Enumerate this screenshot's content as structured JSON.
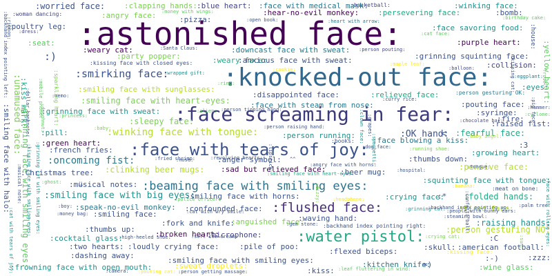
{
  "palette": {
    "background": "#ffffff",
    "dark_purple": "#440154",
    "indigo": "#3b528b",
    "teal": "#21918c",
    "green": "#5ec962",
    "yellow": "#fde725"
  },
  "words": [
    {
      "text": ":astonished face:",
      "color": "#440154",
      "weight": 1.0
    },
    {
      "text": ":knocked-out face:",
      "color": "#31688e",
      "weight": 0.72
    },
    {
      "text": ":face screaming in fear:",
      "color": "#3b3a7a",
      "weight": 0.62
    },
    {
      "text": ":face with tears of joy:",
      "color": "#3b528b",
      "weight": 0.55
    },
    {
      "text": ":water pistol:",
      "color": "#22a884",
      "weight": 0.5
    },
    {
      "text": ":beaming face with smiling eyes:",
      "color": "#2c728e",
      "weight": 0.42
    },
    {
      "text": ":flushed face:",
      "color": "#472d7b",
      "weight": 0.45
    },
    {
      "text": ":smirking face:",
      "color": "#3b528b",
      "weight": 0.3
    },
    {
      "text": ":worried face:",
      "color": "#3b528b",
      "weight": 0.2
    },
    {
      "text": ":clapping hands:",
      "color": "#7ad151",
      "weight": 0.18
    },
    {
      "text": ":blue heart:",
      "color": "#414487",
      "weight": 0.17
    },
    {
      "text": ":face with medical mask:",
      "color": "#2a788e",
      "weight": 0.17
    },
    {
      "text": ":basketball:",
      "color": "#414487",
      "weight": 0.1
    },
    {
      "text": ":winking face:",
      "color": "#21918c",
      "weight": 0.18
    },
    {
      "text": ":woman dancing:",
      "color": "#414487",
      "weight": 0.1
    },
    {
      "text": ":angry face:",
      "color": "#7ad151",
      "weight": 0.17
    },
    {
      "text": ":money with wings:",
      "color": "#5ec962",
      "weight": 0.09
    },
    {
      "text": ":hear-no-evil monkey:",
      "color": "#440154",
      "weight": 0.17
    },
    {
      "text": ":persevering face:",
      "color": "#22a884",
      "weight": 0.17
    },
    {
      "text": ":bomb:",
      "color": "#3b528b",
      "weight": 0.17
    },
    {
      "text": ":pizza:",
      "color": "#3b528b",
      "weight": 0.15
    },
    {
      "text": ":birthday cake:",
      "color": "#5ec962",
      "weight": 0.09
    },
    {
      "text": ":poultry leg:",
      "color": "#3b528b",
      "weight": 0.17
    },
    {
      "text": ":open book:",
      "color": "#3b528b",
      "weight": 0.09
    },
    {
      "text": ":heart with arrow:",
      "color": "#2a788e",
      "weight": 0.09
    },
    {
      "text": ":face savoring food:",
      "color": "#21918c",
      "weight": 0.17
    },
    {
      "text": ":dress:",
      "color": "#414487",
      "weight": 0.08
    },
    {
      "text": ":cat face:",
      "color": "#5ec962",
      "weight": 0.08
    },
    {
      "text": ":seat:",
      "color": "#5ec962",
      "weight": 0.17
    },
    {
      "text": ":purple heart:",
      "color": "#440154",
      "weight": 0.17
    },
    {
      "text": ":weary cat:",
      "color": "#440154",
      "weight": 0.15
    },
    {
      "text": ":Santa Claus:",
      "color": "#3b528b",
      "weight": 0.09
    },
    {
      "text": ":downcast face with sweat:",
      "color": "#2a788e",
      "weight": 0.15
    },
    {
      "text": ":person pouting:",
      "color": "#414487",
      "weight": 0.09
    },
    {
      "text": ":grinning squinting face:",
      "color": "#3b528b",
      "weight": 0.17
    },
    {
      "text": ":party popper:",
      "color": "#7ad151",
      "weight": 0.15
    },
    {
      "text": ":weary face:",
      "color": "#22a884",
      "weight": 0.15
    },
    {
      "text": ":anxious face with sweat:",
      "color": "#3b528b",
      "weight": 0.15
    },
    {
      "text": ":kissing face with closed eyes:",
      "color": "#3b528b",
      "weight": 0.1
    },
    {
      "text": ":collision:",
      "color": "#414487",
      "weight": 0.17
    },
    {
      "text": ":maple leaf:",
      "color": "#fde725",
      "weight": 0.09
    },
    {
      "text": ":balloon:",
      "color": "#414487",
      "weight": 0.1
    },
    {
      "text": ":cookie:",
      "color": "#fde725",
      "weight": 0.09
    },
    {
      "text": ":wrapped gift:",
      "color": "#21918c",
      "weight": 0.09
    },
    {
      "text": ":smiling face with sunglasses:",
      "color": "#b5de2b",
      "weight": 0.15
    },
    {
      "text": ":ring:",
      "color": "#5ec962",
      "weight": 0.08
    },
    {
      "text": ":disappointed face:",
      "color": "#3b528b",
      "weight": 0.15
    },
    {
      "text": ":relieved face:",
      "color": "#22a884",
      "weight": 0.15
    },
    {
      "text": ":person gesturing OK:",
      "color": "#2a788e",
      "weight": 0.15
    },
    {
      "text": ":eyes:",
      "color": "#21918c",
      "weight": 0.15
    },
    {
      "text": ":eggplant:",
      "color": "#2a788e",
      "weight": 0.09
    },
    {
      "text": ":memo:",
      "color": "#3b528b",
      "weight": 0.08
    },
    {
      "text": ":smiling face with heart-eyes:",
      "color": "#7ad151",
      "weight": 0.19
    },
    {
      "text": ":face with steam from nose:",
      "color": "#2a788e",
      "weight": 0.15
    },
    {
      "text": ":curry rice:",
      "color": "#3b528b",
      "weight": 0.08
    },
    {
      "text": ":pouting face:",
      "color": "#3b528b",
      "weight": 0.17
    },
    {
      "text": ":hammer:",
      "color": "#3b528b",
      "weight": 0.08
    },
    {
      "text": ":grinning face with sweat:",
      "color": "#21918c",
      "weight": 0.15
    },
    {
      "text": ":alien:",
      "color": "#5ec962",
      "weight": 0.08
    },
    {
      "text": ":person tipping hand:",
      "color": "#3b528b",
      "weight": 0.09
    },
    {
      "text": ":syringe:",
      "color": "#3b528b",
      "weight": 0.15
    },
    {
      "text": ":cyclone:",
      "color": "#5ec962",
      "weight": 0.08
    },
    {
      "text": ":princess:",
      "color": "#5ec962",
      "weight": 0.08
    },
    {
      "text": ":sleepy face:",
      "color": "#7ad151",
      "weight": 0.17
    },
    {
      "text": ":fire:",
      "color": "#3b528b",
      "weight": 0.17
    },
    {
      "text": ":chocolate bar:",
      "color": "#414487",
      "weight": 0.08
    },
    {
      "text": ":raised fist:",
      "color": "#3b528b",
      "weight": 0.15
    },
    {
      "text": ":pill:",
      "color": "#21918c",
      "weight": 0.17
    },
    {
      "text": ":baby:",
      "color": "#7ad151",
      "weight": 0.08
    },
    {
      "text": ":winking face with tongue:",
      "color": "#b5de2b",
      "weight": 0.23
    },
    {
      "text": ":person running:",
      "color": "#21918c",
      "weight": 0.17
    },
    {
      "text": ":person raising hand:",
      "color": "#3b528b",
      "weight": 0.08
    },
    {
      "text": ":OK hand:",
      "color": "#3b528b",
      "weight": 0.2
    },
    {
      "text": ":fearful face:",
      "color": "#22a884",
      "weight": 0.19
    },
    {
      "text": ":green heart:",
      "color": "#440154",
      "weight": 0.17
    },
    {
      "text": ":fried shrimp:",
      "color": "#3b528b",
      "weight": 0.08
    },
    {
      "text": ":revolving hearts:",
      "color": "#3b528b",
      "weight": 0.08
    },
    {
      "text": ":books:",
      "color": "#3b528b",
      "weight": 0.1
    },
    {
      "text": ":face blowing a kiss:",
      "color": "#2a788e",
      "weight": 0.17
    },
    {
      "text": ":baby angel:",
      "color": "#b5de2b",
      "weight": 0.08
    },
    {
      "text": ":french fries:",
      "color": "#3b528b",
      "weight": 0.17
    },
    {
      "text": ":dog face:",
      "color": "#3b528b",
      "weight": 0.09
    },
    {
      "text": ":running shoe:",
      "color": "#7ad151",
      "weight": 0.08
    },
    {
      "text": ":3",
      "color": "#3b528b",
      "weight": 0.15
    },
    {
      "text": ":growing heart:",
      "color": "#21918c",
      "weight": 0.17
    },
    {
      "text": ":oncoming fist:",
      "color": "#2a788e",
      "weight": 0.22
    },
    {
      "text": ":nose:",
      "color": "#3b528b",
      "weight": 0.08
    },
    {
      "text": ":anger symbol:",
      "color": "#3b528b",
      "weight": 0.15
    },
    {
      "text": "^^",
      "color": "#3b528b",
      "weight": 0.12
    },
    {
      "text": ":thumbs down:",
      "color": "#3b528b",
      "weight": 0.15
    },
    {
      "text": ":Christmas tree:",
      "color": "#3b528b",
      "weight": 0.17
    },
    {
      "text": ":clinking beer mugs:",
      "color": "#b5de2b",
      "weight": 0.19
    },
    {
      "text": ":angry face with horns:",
      "color": "#3b528b",
      "weight": 0.09
    },
    {
      "text": ":sad but relieved face:",
      "color": "#440154",
      "weight": 0.17
    },
    {
      "text": ":beer mug:",
      "color": "#3b528b",
      "weight": 0.15
    },
    {
      "text": ":pensive face:",
      "color": "#b5de2b",
      "weight": 0.17
    },
    {
      "text": ":tongue:",
      "color": "#3b528b",
      "weight": 0.1
    },
    {
      "text": ":ghost:",
      "color": "#5ec962",
      "weight": 0.08
    },
    {
      "text": ":smiling face with heart-eyes:",
      "color": "#22a884",
      "weight": 0.09
    },
    {
      "text": ":hospital:",
      "color": "#3b528b",
      "weight": 0.08
    },
    {
      "text": ":musical notes:",
      "color": "#3b528b",
      "weight": 0.15
    },
    {
      "text": ":squinting face with tongue:",
      "color": "#21918c",
      "weight": 0.17
    },
    {
      "text": ":meat on bone:",
      "color": "#3b528b",
      "weight": 0.1
    },
    {
      "text": ":smiling face with big eyes:",
      "color": "#21918c",
      "weight": 0.19
    },
    {
      "text": ":smiling face with horns:",
      "color": "#3b528b",
      "weight": 0.15
    },
    {
      "text": ":crying face:",
      "color": "#21918c",
      "weight": 0.15
    },
    {
      "text": ":*",
      "color": "#3b528b",
      "weight": 0.15
    },
    {
      "text": ":folded hands:",
      "color": "#22a884",
      "weight": 0.18
    },
    {
      "text": ":banana:",
      "color": "#fde725",
      "weight": 0.08
    },
    {
      "text": ":police officer:",
      "color": "#5ec962",
      "weight": 0.08
    },
    {
      "text": ":headphone:",
      "color": "#fde725",
      "weight": 0.08
    },
    {
      "text": ":boy:",
      "color": "#3b528b",
      "weight": 0.08
    },
    {
      "text": ":speak-no-evil monkey:",
      "color": "#2a788e",
      "weight": 0.17
    },
    {
      "text": ":confounded face:",
      "color": "#3b528b",
      "weight": 0.15
    },
    {
      "text": ":tired face:",
      "color": "#b5de2b",
      "weight": 0.15
    },
    {
      "text": ":palm tree:",
      "color": "#3b528b",
      "weight": 0.08
    },
    {
      "text": ":money bag:",
      "color": "#3b528b",
      "weight": 0.09
    },
    {
      "text": ":smiling face:",
      "color": "#3b528b",
      "weight": 0.17
    },
    {
      "text": ":cat with wry smile:",
      "color": "#3b528b",
      "weight": 0.08
    },
    {
      "text": ":grinning cat:",
      "color": "#21918c",
      "weight": 0.09
    },
    {
      "text": ":steaming bowl:",
      "color": "#3b528b",
      "weight": 0.08
    },
    {
      "text": ":people with bunny ears:",
      "color": "#3b528b",
      "weight": 0.08
    },
    {
      "text": ":fork and knife:",
      "color": "#3b528b",
      "weight": 0.17
    },
    {
      "text": ":anguished face:",
      "color": "#7ad151",
      "weight": 0.17
    },
    {
      "text": ":waving hand:",
      "color": "#3b528b",
      "weight": 0.15
    },
    {
      "text": ":raising hands:",
      "color": "#21918c",
      "weight": 0.17
    },
    {
      "text": ":backhand index pointing up:",
      "color": "#3b528b",
      "weight": 0.08
    },
    {
      "text": ":gem stone:",
      "color": "#3b528b",
      "weight": 0.08
    },
    {
      "text": ":backhand index pointing right:",
      "color": "#3b528b",
      "weight": 0.1
    },
    {
      "text": ":thumbs up:",
      "color": "#3b528b",
      "weight": 0.15
    },
    {
      "text": ":broken heart:",
      "color": "#440154",
      "weight": 0.17
    },
    {
      "text": ":microphone:",
      "color": "#414487",
      "weight": 0.15
    },
    {
      "text": ":person gesturing NO:",
      "color": "#b5de2b",
      "weight": 0.17
    },
    {
      "text": ":cocktail glass:",
      "color": "#21918c",
      "weight": 0.17
    },
    {
      "text": ":high-heeled shoe:",
      "color": "#3b528b",
      "weight": 0.08
    },
    {
      "text": ":soft ice cream:",
      "color": "#3b528b",
      "weight": 0.08
    },
    {
      "text": ":crying cat:",
      "color": "#7ad151",
      "weight": 0.09
    },
    {
      "text": ":C",
      "color": "#3b528b",
      "weight": 0.12
    },
    {
      "text": ":two hearts:",
      "color": "#3b528b",
      "weight": 0.1
    },
    {
      "text": ":loudly crying face:",
      "color": "#3b528b",
      "weight": 0.17
    },
    {
      "text": ":pile of poo:",
      "color": "#3b528b",
      "weight": 0.17
    },
    {
      "text": ":skull:",
      "color": "#3b528b",
      "weight": 0.15
    },
    {
      "text": ":american football:",
      "color": "#3b528b",
      "weight": 0.15
    },
    {
      "text": ":dashing away:",
      "color": "#3b528b",
      "weight": 0.17
    },
    {
      "text": ":smiling face with smiling eyes:",
      "color": "#3b528b",
      "weight": 0.15
    },
    {
      "text": ":flexed biceps:",
      "color": "#3b528b",
      "weight": 0.17
    },
    {
      "text": ":kissing face:",
      "color": "#fde725",
      "weight": 0.09
    },
    {
      "text": ":-)",
      "color": "#3b528b",
      "weight": 0.12
    },
    {
      "text": ":zzz:",
      "color": "#3b528b",
      "weight": 0.15
    },
    {
      "text": ":frowning face with open mouth:",
      "color": "#21918c",
      "weight": 0.17
    },
    {
      "text": ":sweat droplets:",
      "color": "#fde725",
      "weight": 0.17
    },
    {
      "text": ":kitchen knife:",
      "color": "#2a788e",
      "weight": 0.17
    },
    {
      "text": "=)",
      "color": "#3b528b",
      "weight": 0.12
    },
    {
      "text": ":wine glass:",
      "color": "#5ec962",
      "weight": 0.17
    },
    {
      "text": ":pouting cat:",
      "color": "#fde725",
      "weight": 0.08
    },
    {
      "text": ":camera:",
      "color": "#3b528b",
      "weight": 0.08
    },
    {
      "text": ":person getting massage:",
      "color": "#3b528b",
      "weight": 0.08
    },
    {
      "text": ":kiss:",
      "color": "#3b528b",
      "weight": 0.1
    },
    {
      "text": ":leaf fluttering in wind:",
      "color": "#5ec962",
      "weight": 0.08
    },
    {
      "text": ":house:",
      "color": "#3b528b",
      "weight": 0.08
    },
    {
      "text": ":yellow heart:",
      "color": "#5ec962",
      "weight": 0.17
    },
    {
      "text": ":backhand index pointing left:",
      "color": "#3b528b",
      "weight": 0.08
    },
    {
      "text": ":unamused face:",
      "color": "#7ad151",
      "weight": 0.2
    },
    {
      "text": ":kiss mark:",
      "color": "#22a884",
      "weight": 0.15
    },
    {
      "text": ":dollar banknote:",
      "color": "#3b528b",
      "weight": 0.08
    },
    {
      "text": ":mobile phone:",
      "color": "#5ec962",
      "weight": 0.08
    },
    {
      "text": ":sparkling heart:",
      "color": "#7ad151",
      "weight": 0.1
    },
    {
      "text": ":ribbon:",
      "color": "#3b528b",
      "weight": 0.08
    },
    {
      "text": ":doughnut:",
      "color": "#5ec962",
      "weight": 0.08
    },
    {
      "text": ":smiling face with halo:",
      "color": "#3b528b",
      "weight": 0.17
    },
    {
      "text": ":grinning face with smiling eyes:",
      "color": "#5ec962",
      "weight": 0.18
    },
    {
      "text": ":grinning cat with smiling eyes:",
      "color": "#21918c",
      "weight": 0.1
    },
    {
      "text": ":cat with tears of joy:",
      "color": "#21918c",
      "weight": 0.08
    },
    {
      "text": ":musical note:",
      "color": "#3b528b",
      "weight": 0.1
    },
    {
      "text": ":kissing face with smiling eyes:",
      "color": "#21918c",
      "weight": 0.08
    },
    {
      "text": ":confetti ball:",
      "color": "#3b528b",
      "weight": 0.08
    },
    {
      "text": ":dizzy:",
      "color": "#7ad151",
      "weight": 0.08
    },
    {
      "text": ":lipstick:",
      "color": "#3b528b",
      "weight": 0.08
    },
    {
      "text": ":grapes:",
      "color": "#3b528b",
      "weight": 0.08
    },
    {
      "text": ":spaghetti:",
      "color": "#21918c",
      "weight": 0.08
    },
    {
      "text": ":kissing cat:",
      "color": "#3b528b",
      "weight": 0.08
    },
    {
      "text": ":rose:",
      "color": "#5ec962",
      "weight": 0.08
    },
    {
      "text": ":sun:",
      "color": "#7ad151",
      "weight": 0.08
    },
    {
      "text": ":clown face:",
      "color": "#21918c",
      "weight": 0.08
    },
    {
      "text": ":pig face:",
      "color": "#3b528b",
      "weight": 0.08
    },
    {
      "text": ":face with rolling eyes:",
      "color": "#21918c",
      "weight": 0.08
    },
    {
      "text": ":(",
      "color": "#3b528b",
      "weight": 0.15
    },
    {
      "text": ":)",
      "color": "#3b528b",
      "weight": 0.15
    },
    {
      "text": "<",
      "color": "#3b528b",
      "weight": 0.15
    }
  ]
}
